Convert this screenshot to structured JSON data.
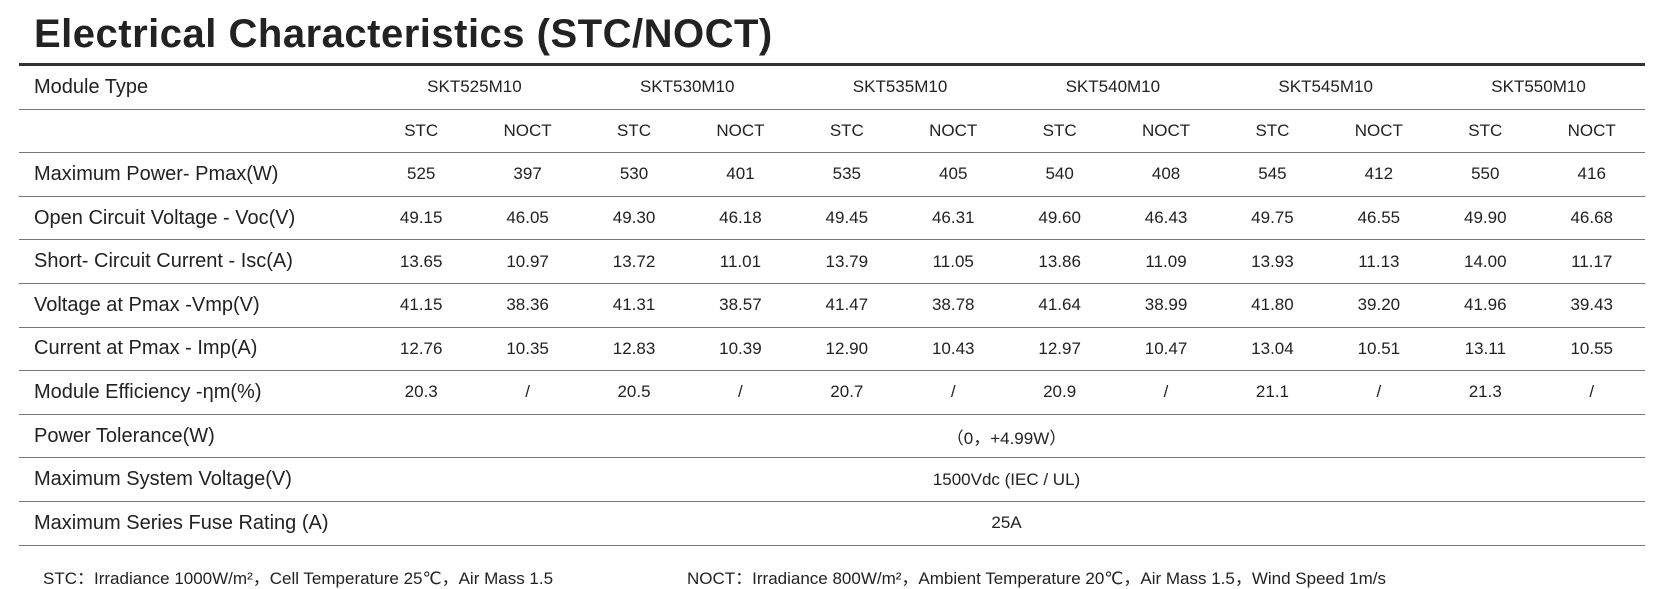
{
  "title": "Electrical Characteristics (STC/NOCT)",
  "table": {
    "header_label": "Module Type",
    "module_types": [
      "SKT525M10",
      "SKT530M10",
      "SKT535M10",
      "SKT540M10",
      "SKT545M10",
      "SKT550M10"
    ],
    "conditions": [
      "STC",
      "NOCT"
    ],
    "rows": [
      {
        "label": "Maximum Power- Pmax(W)",
        "values": [
          "525",
          "397",
          "530",
          "401",
          "535",
          "405",
          "540",
          "408",
          "545",
          "412",
          "550",
          "416"
        ]
      },
      {
        "label": "Open Circuit Voltage - Voc(V)",
        "values": [
          "49.15",
          "46.05",
          "49.30",
          "46.18",
          "49.45",
          "46.31",
          "49.60",
          "46.43",
          "49.75",
          "46.55",
          "49.90",
          "46.68"
        ]
      },
      {
        "label": "Short- Circuit Current - Isc(A)",
        "values": [
          "13.65",
          "10.97",
          "13.72",
          "11.01",
          "13.79",
          "11.05",
          "13.86",
          "11.09",
          "13.93",
          "11.13",
          "14.00",
          "11.17"
        ]
      },
      {
        "label": "Voltage at Pmax -Vmp(V)",
        "values": [
          "41.15",
          "38.36",
          "41.31",
          "38.57",
          "41.47",
          "38.78",
          "41.64",
          "38.99",
          "41.80",
          "39.20",
          "41.96",
          "39.43"
        ]
      },
      {
        "label": "Current at Pmax  - Imp(A)",
        "values": [
          "12.76",
          "10.35",
          "12.83",
          "10.39",
          "12.90",
          "10.43",
          "12.97",
          "10.47",
          "13.04",
          "10.51",
          "13.11",
          "10.55"
        ]
      },
      {
        "label": "Module Efficiency -ηm(%)",
        "values": [
          "20.3",
          "/",
          "20.5",
          "/",
          "20.7",
          "/",
          "20.9",
          "/",
          "21.1",
          "/",
          "21.3",
          "/"
        ]
      }
    ],
    "merged_rows": [
      {
        "label": "Power Tolerance(W)",
        "value": "（0，+4.99W）"
      },
      {
        "label": "Maximum System Voltage(V)",
        "value": "1500Vdc (IEC / UL)"
      },
      {
        "label": "Maximum Series Fuse Rating (A)",
        "value": "25A"
      }
    ]
  },
  "footnotes": [
    "STC：Irradiance 1000W/m²，Cell Temperature 25℃，Air Mass 1.5",
    "NOCT：Irradiance 800W/m²，Ambient Temperature 20℃，Air Mass 1.5，Wind Speed 1m/s"
  ]
}
